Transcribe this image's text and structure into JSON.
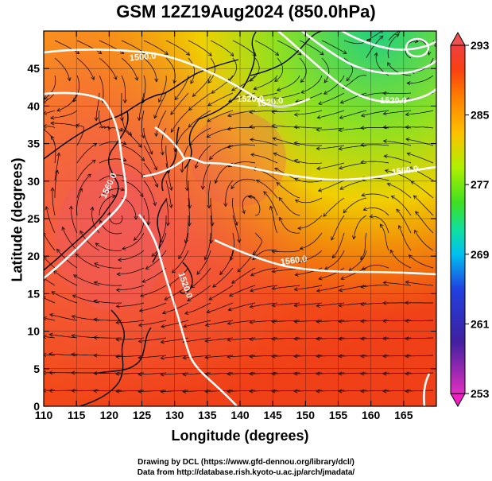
{
  "title": "GSM 12Z19Aug2024 (850.0hPa)",
  "xlabel": "Longitude (degrees)",
  "ylabel": "Latitude  (degrees)",
  "credits": [
    "Drawing by DCL (https://www.gfd-dennou.org/library/dcl/)",
    "Data from http://database.rish.kyoto-u.ac.jp/arch/jmadata/"
  ],
  "map": {
    "lon_range": [
      110,
      170
    ],
    "lat_range": [
      0,
      50
    ],
    "x_ticks": [
      110,
      115,
      120,
      125,
      130,
      135,
      140,
      145,
      150,
      155,
      160,
      165
    ],
    "x_tick_labels": [
      "110",
      "115",
      "120",
      "125",
      "130",
      "135",
      "140",
      "145",
      "150",
      "155",
      "160",
      "165"
    ],
    "y_ticks": [
      0,
      5,
      10,
      15,
      20,
      25,
      30,
      35,
      40,
      45
    ],
    "y_tick_labels": [
      "0",
      "5",
      "10",
      "15",
      "20",
      "25",
      "30",
      "35",
      "40",
      "45"
    ],
    "grid": true,
    "contour_labels": [
      "1500.0",
      "1520.0",
      "1560.0",
      "1560.0",
      "1560.0",
      "1520.0",
      "1520.0",
      "1520.0"
    ],
    "colorbar": {
      "ticks": [
        253,
        261,
        269,
        277,
        285,
        293
      ],
      "tick_labels": [
        "253",
        "261",
        "269",
        "277",
        "285",
        "293"
      ],
      "colors": [
        "#e030c0",
        "#4020a0",
        "#2040e0",
        "#00c0f0",
        "#10e0a0",
        "#40e020",
        "#b0f000",
        "#ffc000",
        "#ff8000",
        "#f84010",
        "#f04040"
      ]
    }
  }
}
